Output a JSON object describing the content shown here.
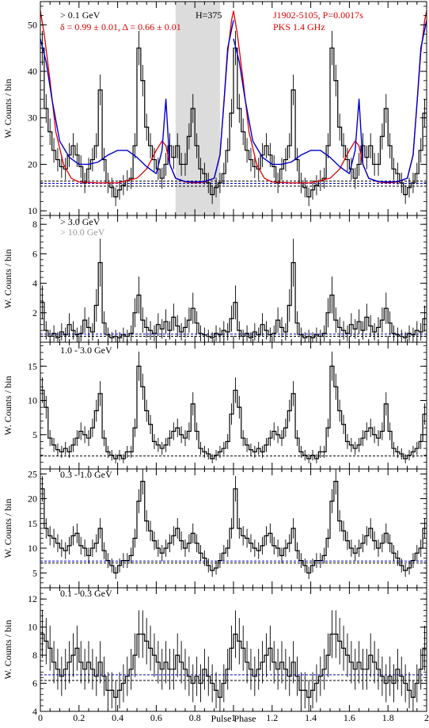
{
  "figure": {
    "xlabel": "Pulse Phase",
    "x_ticks": [
      "0",
      "0.2",
      "0.4",
      "0.6",
      "0.8",
      "1",
      "1.2",
      "1.4",
      "1.6",
      "1.8",
      "2"
    ],
    "ylabel": "W. Counts / bin",
    "colors": {
      "hist": "#000000",
      "fit": "#0000cc",
      "radio": "#dd0000",
      "gray_text": "#999999",
      "shade": "#dcdcdc"
    }
  },
  "chart_data": [
    {
      "type": "line",
      "panel": "top",
      "energy_label": "> 0.1 GeV",
      "htest_label": "H=375",
      "source_label": "J1902-5105, P=0.0017s",
      "radio_label": "PKS 1.4 GHz",
      "fit_label": "δ = 0.99 ± 0.01, Δ = 0.66 ± 0.01",
      "x_range": [
        0,
        2
      ],
      "ylim": [
        9,
        55
      ],
      "y_ticks": [
        "10",
        "20",
        "30",
        "40",
        "50"
      ],
      "off_pulse_shaded": [
        0.7,
        0.93
      ],
      "bins": 50,
      "values": [
        45,
        32,
        27,
        23,
        21,
        19.5,
        19,
        22,
        24,
        22,
        19.5,
        16,
        19,
        21,
        24,
        36,
        21,
        16,
        15,
        13,
        14.5,
        15.5,
        16.5,
        17,
        24,
        45,
        38,
        28,
        24,
        21,
        19,
        17,
        20,
        24,
        21.5,
        24,
        20,
        20,
        26,
        32,
        24,
        19,
        18,
        16,
        13.5,
        15,
        16,
        18,
        23,
        31
      ],
      "background_levels": [
        15.3,
        15.9,
        16.4
      ],
      "fit_curve": {
        "x": [
          0,
          0.03,
          0.06,
          0.1,
          0.15,
          0.2,
          0.25,
          0.3,
          0.35,
          0.4,
          0.45,
          0.5,
          0.55,
          0.6,
          0.63,
          0.65,
          0.67,
          0.7,
          0.75,
          0.8,
          0.85,
          0.9,
          0.93,
          0.95,
          0.97,
          1
        ],
        "y": [
          47,
          42,
          34,
          25,
          21.5,
          20,
          20,
          20.5,
          22,
          23,
          23,
          21.5,
          19.5,
          18,
          23,
          34,
          20,
          17,
          16.3,
          16.2,
          16.3,
          17,
          22,
          33,
          45,
          51
        ]
      },
      "radio_curve": {
        "x": [
          0,
          0.02,
          0.05,
          0.08,
          0.12,
          0.16,
          0.2,
          0.3,
          0.4,
          0.5,
          0.55,
          0.6,
          0.63,
          0.65,
          0.67,
          0.7,
          0.75,
          0.8,
          0.85,
          0.9,
          0.93,
          0.95,
          0.97,
          0.99,
          1.0
        ],
        "y": [
          53,
          48,
          38,
          27,
          20,
          17,
          16.2,
          16,
          16,
          17,
          19,
          23,
          25,
          24,
          20,
          17,
          16.2,
          16,
          16.2,
          17,
          22,
          33,
          44,
          51,
          53
        ]
      }
    },
    {
      "type": "line",
      "panel": "3gev",
      "energy_label": "> 3.0 GeV",
      "energy_label_2": "> 10.0 GeV",
      "x_range": [
        0,
        2
      ],
      "ylim": [
        0,
        8.6
      ],
      "y_ticks": [
        "2",
        "4",
        "6",
        "8"
      ],
      "bins": 50,
      "values": [
        2.7,
        0.8,
        0.4,
        0.6,
        0.3,
        0.7,
        0.5,
        1.2,
        0.8,
        0.5,
        0.6,
        1.5,
        1.0,
        0.7,
        2.5,
        5.4,
        1.3,
        0.5,
        0.3,
        0.4,
        0.3,
        0.5,
        0.4,
        0.6,
        2.0,
        3.2,
        1.5,
        1.0,
        0.8,
        0.6,
        1.2,
        0.9,
        1.4,
        0.8,
        1.7,
        1.1,
        0.7,
        1.0,
        1.5,
        2.3,
        1.3,
        0.6,
        0.5,
        0.4,
        0.3,
        0.6,
        0.5,
        0.8,
        0.7,
        1.6
      ],
      "background_levels": [
        0.4,
        0.55
      ]
    },
    {
      "type": "line",
      "panel": "1-3gev",
      "energy_label": "1.0 - 3.0 GeV",
      "x_range": [
        0,
        2
      ],
      "ylim": [
        0,
        18.5
      ],
      "y_ticks": [
        "5",
        "10",
        "15"
      ],
      "bins": 50,
      "values": [
        11.5,
        9,
        4.5,
        3.5,
        2.8,
        2.5,
        3,
        2.5,
        3.5,
        4.5,
        5.5,
        5,
        4.5,
        6,
        8.5,
        11,
        4.5,
        2.5,
        2,
        1.5,
        2,
        1.5,
        2.5,
        2.5,
        6,
        15,
        12,
        8.5,
        6.5,
        4,
        3.5,
        3,
        3.5,
        4.5,
        5.5,
        6,
        5,
        4.5,
        5.5,
        9.5,
        5.5,
        3,
        2.5,
        2.2,
        1.5,
        2,
        2.5,
        3,
        4,
        8
      ],
      "background_levels": [
        1.9
      ]
    },
    {
      "type": "line",
      "panel": "03-1gev",
      "energy_label": "0.3 - 1.0 GeV",
      "x_range": [
        0,
        2
      ],
      "ylim": [
        2,
        26
      ],
      "y_ticks": [
        "5",
        "10",
        "15",
        "20",
        "25"
      ],
      "bins": 50,
      "values": [
        22,
        14,
        12.5,
        12,
        11,
        10,
        9.5,
        10.5,
        12.5,
        13,
        10.5,
        10,
        8.5,
        10,
        11,
        14,
        9.5,
        7.5,
        6.5,
        5,
        6.5,
        7.5,
        7.5,
        8.5,
        12,
        19.5,
        23.5,
        15.5,
        13.5,
        11.5,
        10,
        9,
        10,
        11,
        12.5,
        14,
        11.5,
        10,
        11,
        13,
        11,
        9,
        8,
        6.5,
        5.5,
        6,
        7.5,
        9,
        10,
        14
      ],
      "background_levels": [
        7.0,
        7.4
      ]
    },
    {
      "type": "line",
      "panel": "01-03gev",
      "energy_label": "0.1 - 0.3 GeV",
      "x_range": [
        0,
        2
      ],
      "ylim": [
        4,
        12.8
      ],
      "y_ticks": [
        "4",
        "6",
        "8",
        "10",
        "12"
      ],
      "bins": 50,
      "values": [
        9.5,
        9,
        8.5,
        7.5,
        7,
        6.5,
        7,
        7.5,
        8,
        8.5,
        7.5,
        7,
        7.5,
        7,
        6.5,
        7.5,
        6.5,
        5.5,
        5.5,
        5,
        5.5,
        6,
        6.5,
        7,
        8,
        9.5,
        9.5,
        9,
        8.5,
        8,
        7.5,
        7,
        7.5,
        7,
        7,
        8,
        7.5,
        7,
        6.5,
        6,
        6.5,
        6,
        7,
        6.5,
        6,
        5.5,
        5,
        6,
        7,
        8.5
      ],
      "background_levels": [
        6.2,
        6.6
      ]
    }
  ]
}
